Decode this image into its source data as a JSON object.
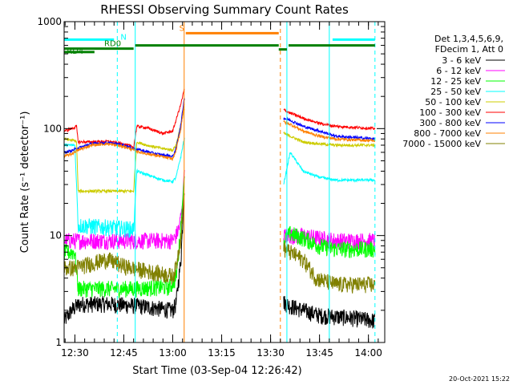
{
  "chart_data": {
    "type": "line",
    "title": "RHESSI Observing Summary Count Rates",
    "xlabel": "Start Time (03-Sep-04 12:26:42)",
    "ylabel": "Count Rate (s⁻¹ detector⁻¹)",
    "x_start": "12:26:42",
    "xlim": [
      "12:26:42",
      "14:05:00"
    ],
    "x_ticks": [
      "12:30",
      "12:45",
      "13:00",
      "13:15",
      "13:30",
      "13:45",
      "14:00"
    ],
    "yscale": "log",
    "ylim": [
      1,
      1000
    ],
    "y_ticks": [
      "1",
      "10",
      "100",
      "1000"
    ],
    "legend_position": "right",
    "legend_header": [
      "Det 1,3,4,5,6,9,",
      "FDecim 1, Att 0"
    ],
    "series": [
      {
        "name": "3 - 6 keV",
        "color": "#000000",
        "points": [
          [
            "12:26:42",
            1.6
          ],
          [
            "12:29:00",
            2.0
          ],
          [
            "12:30:30",
            2.2
          ],
          [
            "12:32:00",
            2.3
          ],
          [
            "12:40:00",
            2.3
          ],
          [
            "12:50:00",
            2.2
          ],
          [
            "12:55:00",
            2.1
          ],
          [
            "13:00:00",
            2.0
          ],
          [
            "13:01:00",
            2.3
          ],
          [
            "13:02:30",
            6
          ],
          [
            "13:03:30",
            25
          ],
          [
            "13:34:00",
            2.4
          ],
          [
            "13:36:00",
            2.2
          ],
          [
            "13:45:00",
            1.8
          ],
          [
            "13:55:00",
            1.7
          ],
          [
            "14:02:00",
            1.6
          ]
        ]
      },
      {
        "name": "6 - 12 keV",
        "color": "#ff00ff",
        "points": [
          [
            "12:26:42",
            9
          ],
          [
            "12:30:00",
            9
          ],
          [
            "12:40:00",
            9
          ],
          [
            "12:50:00",
            9
          ],
          [
            "12:56:00",
            9
          ],
          [
            "13:00:00",
            9
          ],
          [
            "13:01:00",
            10
          ],
          [
            "13:02:00",
            12
          ],
          [
            "13:03:00",
            20
          ],
          [
            "13:03:30",
            40
          ],
          [
            "13:34:00",
            10
          ],
          [
            "13:36:00",
            10
          ],
          [
            "13:40:00",
            10
          ],
          [
            "13:50:00",
            9
          ],
          [
            "14:02:00",
            9
          ]
        ]
      },
      {
        "name": "12 - 25 keV",
        "color": "#00ff00",
        "points": [
          [
            "12:26:42",
            7
          ],
          [
            "12:30:00",
            7
          ],
          [
            "12:31:00",
            3.2
          ],
          [
            "12:40:00",
            3.2
          ],
          [
            "12:48:00",
            3.2
          ],
          [
            "12:56:00",
            3.3
          ],
          [
            "12:59:00",
            3.3
          ],
          [
            "13:01:00",
            4
          ],
          [
            "13:02:00",
            8
          ],
          [
            "13:03:00",
            20
          ],
          [
            "13:03:30",
            35
          ],
          [
            "13:34:00",
            9
          ],
          [
            "13:36:00",
            10.5
          ],
          [
            "13:40:00",
            9.5
          ],
          [
            "13:45:00",
            8
          ],
          [
            "13:50:00",
            7.5
          ],
          [
            "14:02:00",
            7.5
          ]
        ]
      },
      {
        "name": "25 - 50 keV",
        "color": "#00ffff",
        "points": [
          [
            "12:26:42",
            70
          ],
          [
            "12:30:00",
            70
          ],
          [
            "12:31:00",
            12.5
          ],
          [
            "12:40:00",
            12
          ],
          [
            "12:48:00",
            11.5
          ],
          [
            "12:49:00",
            40
          ],
          [
            "12:51:00",
            38
          ],
          [
            "12:57:00",
            33
          ],
          [
            "13:00:00",
            32
          ],
          [
            "13:01:00",
            35
          ],
          [
            "13:02:30",
            55
          ],
          [
            "13:03:30",
            80
          ],
          [
            "13:34:00",
            30
          ],
          [
            "13:36:00",
            60
          ],
          [
            "13:40:00",
            40
          ],
          [
            "13:45:00",
            35
          ],
          [
            "13:50:00",
            33
          ],
          [
            "14:02:00",
            33
          ]
        ]
      },
      {
        "name": "50 - 100 keV",
        "color": "#cccc00",
        "points": [
          [
            "12:26:42",
            80
          ],
          [
            "12:29:00",
            78
          ],
          [
            "12:30:30",
            76
          ],
          [
            "12:31:00",
            26
          ],
          [
            "12:40:00",
            26
          ],
          [
            "12:48:00",
            26
          ],
          [
            "12:49:00",
            75
          ],
          [
            "12:52:00",
            70
          ],
          [
            "12:57:00",
            65
          ],
          [
            "13:00:00",
            63
          ],
          [
            "13:01:00",
            70
          ],
          [
            "13:02:30",
            110
          ],
          [
            "13:03:30",
            150
          ],
          [
            "13:34:00",
            90
          ],
          [
            "13:36:00",
            85
          ],
          [
            "13:40:00",
            75
          ],
          [
            "13:45:00",
            72
          ],
          [
            "13:50:00",
            70
          ],
          [
            "14:02:00",
            70
          ]
        ]
      },
      {
        "name": "100 - 300 keV",
        "color": "#ff0000",
        "points": [
          [
            "12:26:42",
            95
          ],
          [
            "12:29:00",
            100
          ],
          [
            "12:30:30",
            105
          ],
          [
            "12:31:00",
            75
          ],
          [
            "12:35:00",
            75
          ],
          [
            "12:40:00",
            76
          ],
          [
            "12:45:00",
            72
          ],
          [
            "12:48:00",
            67
          ],
          [
            "12:49:00",
            105
          ],
          [
            "12:52:00",
            102
          ],
          [
            "12:57:00",
            90
          ],
          [
            "13:00:00",
            95
          ],
          [
            "13:01:00",
            120
          ],
          [
            "13:02:30",
            170
          ],
          [
            "13:03:30",
            230
          ],
          [
            "13:34:00",
            150
          ],
          [
            "13:36:00",
            140
          ],
          [
            "13:40:00",
            125
          ],
          [
            "13:45:00",
            112
          ],
          [
            "13:50:00",
            105
          ],
          [
            "14:02:00",
            100
          ]
        ]
      },
      {
        "name": "300 - 800 keV",
        "color": "#0000ff",
        "points": [
          [
            "12:26:42",
            60
          ],
          [
            "12:29:00",
            62
          ],
          [
            "12:30:30",
            65
          ],
          [
            "12:35:00",
            72
          ],
          [
            "12:40:00",
            74
          ],
          [
            "12:45:00",
            70
          ],
          [
            "12:48:00",
            65
          ],
          [
            "12:50:00",
            63
          ],
          [
            "12:55:00",
            58
          ],
          [
            "13:00:00",
            55
          ],
          [
            "13:01:00",
            65
          ],
          [
            "13:02:30",
            110
          ],
          [
            "13:03:30",
            190
          ],
          [
            "13:34:00",
            125
          ],
          [
            "13:36:00",
            120
          ],
          [
            "13:40:00",
            105
          ],
          [
            "13:45:00",
            95
          ],
          [
            "13:50:00",
            85
          ],
          [
            "14:02:00",
            80
          ]
        ]
      },
      {
        "name": "800 - 7000 keV",
        "color": "#ff8000",
        "points": [
          [
            "12:26:42",
            55
          ],
          [
            "12:29:00",
            58
          ],
          [
            "12:30:30",
            62
          ],
          [
            "12:35:00",
            70
          ],
          [
            "12:40:00",
            72
          ],
          [
            "12:45:00",
            68
          ],
          [
            "12:48:00",
            63
          ],
          [
            "12:50:00",
            60
          ],
          [
            "12:55:00",
            56
          ],
          [
            "13:00:00",
            52
          ],
          [
            "13:01:00",
            62
          ],
          [
            "13:02:30",
            100
          ],
          [
            "13:03:30",
            170
          ],
          [
            "13:34:00",
            115
          ],
          [
            "13:36:00",
            110
          ],
          [
            "13:40:00",
            95
          ],
          [
            "13:45:00",
            85
          ],
          [
            "13:50:00",
            80
          ],
          [
            "14:02:00",
            77
          ]
        ]
      },
      {
        "name": "7000 - 15000 keV",
        "color": "#808000",
        "points": [
          [
            "12:26:42",
            5
          ],
          [
            "12:30:00",
            5
          ],
          [
            "12:35:00",
            5.5
          ],
          [
            "12:40:00",
            6
          ],
          [
            "12:45:00",
            5.2
          ],
          [
            "12:50:00",
            4.8
          ],
          [
            "12:55:00",
            4.5
          ],
          [
            "13:00:00",
            4.2
          ],
          [
            "13:01:00",
            5
          ],
          [
            "13:02:30",
            10
          ],
          [
            "13:03:30",
            25
          ],
          [
            "13:34:00",
            7.5
          ],
          [
            "13:36:00",
            7
          ],
          [
            "13:40:00",
            6
          ],
          [
            "13:44:00",
            4
          ],
          [
            "13:50:00",
            3.5
          ],
          [
            "14:02:00",
            3.5
          ]
        ]
      }
    ],
    "annotations": {
      "vertical_lines": [
        {
          "x": "12:26:42",
          "color": "#00ffff",
          "style": "solid"
        },
        {
          "x": "12:43:00",
          "color": "#00ffff",
          "style": "dashed"
        },
        {
          "x": "12:48:30",
          "color": "#00ffff",
          "style": "solid"
        },
        {
          "x": "13:03:30",
          "color": "#ff8000",
          "style": "solid"
        },
        {
          "x": "13:33:00",
          "color": "#ff8000",
          "style": "dashed"
        },
        {
          "x": "13:35:00",
          "color": "#00ffff",
          "style": "solid"
        },
        {
          "x": "13:48:00",
          "color": "#00ffff",
          "style": "solid"
        },
        {
          "x": "14:02:00",
          "color": "#00ffff",
          "style": "dashed"
        }
      ],
      "segments": [
        {
          "from": "12:26:42",
          "to": "12:42:00",
          "y": 680,
          "color": "#00ffff"
        },
        {
          "from": "13:49:00",
          "to": "14:02:00",
          "y": 680,
          "color": "#00ffff"
        },
        {
          "from": "13:04:00",
          "to": "13:32:30",
          "y": 780,
          "color": "#ff8000"
        },
        {
          "from": "12:26:42",
          "to": "12:48:00",
          "y": 560,
          "color": "#008000"
        },
        {
          "from": "12:48:30",
          "to": "13:32:30",
          "y": 600,
          "color": "#008000"
        },
        {
          "from": "13:32:30",
          "to": "13:35:00",
          "y": 550,
          "color": "#008000"
        },
        {
          "from": "13:35:30",
          "to": "14:02:00",
          "y": 600,
          "color": "#008000"
        },
        {
          "from": "12:26:42",
          "to": "12:36:00",
          "y": 520,
          "color": "#008000"
        }
      ],
      "labels": [
        {
          "text": "N",
          "x": "12:44:00",
          "y": 680,
          "color": "#00ffff"
        },
        {
          "text": "S",
          "x": "13:02:00",
          "y": 820,
          "color": "#ff8000"
        },
        {
          "text": "RD0",
          "x": "12:39:00",
          "y": 590,
          "color": "#008000"
        },
        {
          "text": "RD4",
          "x": "12:27:30",
          "y": 500,
          "color": "#008000"
        }
      ]
    },
    "timestamp": "20-Oct-2021 15:22"
  }
}
